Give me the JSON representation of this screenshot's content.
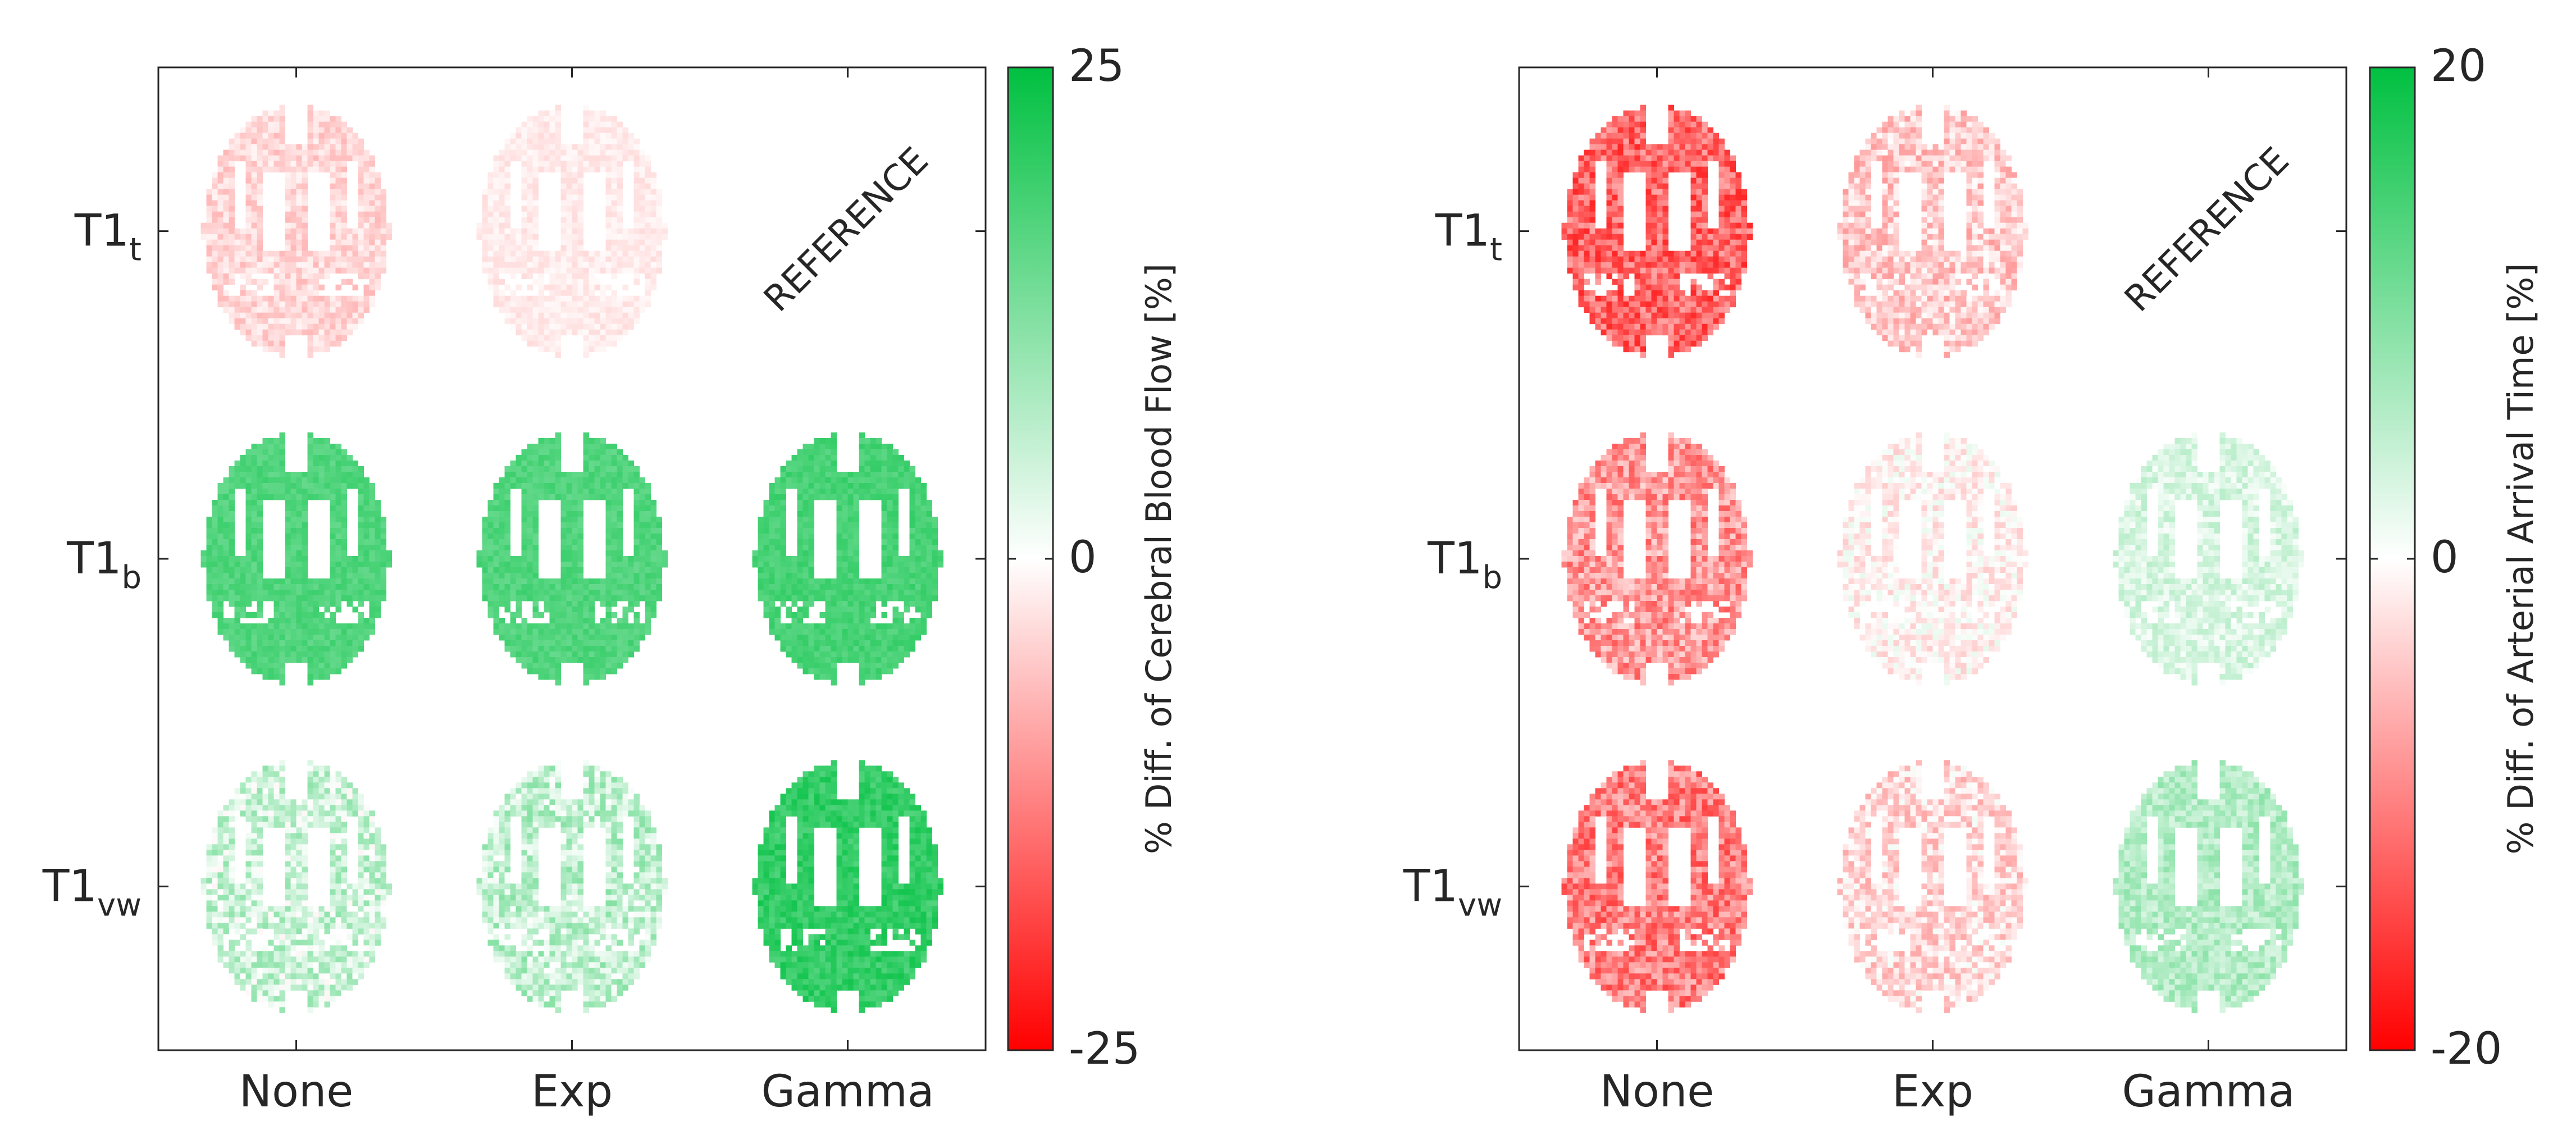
{
  "chart_data": [
    {
      "type": "heatmap",
      "panel": "cbf",
      "columns": [
        "None",
        "Exp",
        "Gamma"
      ],
      "rows": [
        {
          "base": "T1",
          "sub": "t"
        },
        {
          "base": "T1",
          "sub": "b"
        },
        {
          "base": "T1",
          "sub": "vw"
        }
      ],
      "cells": [
        [
          {
            "mean": -4,
            "spread": 3,
            "reference": false
          },
          {
            "mean": -2,
            "spread": 1.5,
            "reference": false
          },
          {
            "mean": null,
            "reference": true
          }
        ],
        [
          {
            "mean": 17,
            "spread": 2,
            "reference": false
          },
          {
            "mean": 17,
            "spread": 2,
            "reference": false
          },
          {
            "mean": 18,
            "spread": 2,
            "reference": false
          }
        ],
        [
          {
            "mean": 5,
            "spread": 6,
            "reference": false
          },
          {
            "mean": 6,
            "spread": 6,
            "reference": false
          },
          {
            "mean": 20,
            "spread": 3,
            "reference": false
          }
        ]
      ],
      "reference_label": "REFERENCE",
      "colorbar": {
        "min": -25,
        "max": 25,
        "ticks": [
          {
            "value": 25,
            "label": "25"
          },
          {
            "value": 0,
            "label": "0"
          },
          {
            "value": -25,
            "label": "-25"
          }
        ],
        "label": "% Diff. of Cerebral Blood Flow [%]",
        "colors": {
          "neg": "#ff0000",
          "mid": "#ffffff",
          "pos": "#00c040"
        }
      }
    },
    {
      "type": "heatmap",
      "panel": "aat",
      "columns": [
        "None",
        "Exp",
        "Gamma"
      ],
      "rows": [
        {
          "base": "T1",
          "sub": "t"
        },
        {
          "base": "T1",
          "sub": "b"
        },
        {
          "base": "T1",
          "sub": "vw"
        }
      ],
      "cells": [
        [
          {
            "mean": -12,
            "spread": 5,
            "reference": false
          },
          {
            "mean": -4,
            "spread": 4,
            "reference": false
          },
          {
            "mean": null,
            "reference": true
          }
        ],
        [
          {
            "mean": -8,
            "spread": 5,
            "reference": false
          },
          {
            "mean": -1,
            "spread": 3,
            "reference": false
          },
          {
            "mean": 3,
            "spread": 2.5,
            "reference": false
          }
        ],
        [
          {
            "mean": -10,
            "spread": 5,
            "reference": false
          },
          {
            "mean": -3,
            "spread": 4,
            "reference": false
          },
          {
            "mean": 6,
            "spread": 3,
            "reference": false
          }
        ]
      ],
      "reference_label": "REFERENCE",
      "colorbar": {
        "min": -20,
        "max": 20,
        "ticks": [
          {
            "value": 20,
            "label": "20"
          },
          {
            "value": 0,
            "label": "0"
          },
          {
            "value": -20,
            "label": "-20"
          }
        ],
        "label": "% Diff. of Arterial Arrival Time [%]",
        "colors": {
          "neg": "#ff0000",
          "mid": "#ffffff",
          "pos": "#00c040"
        }
      }
    }
  ]
}
